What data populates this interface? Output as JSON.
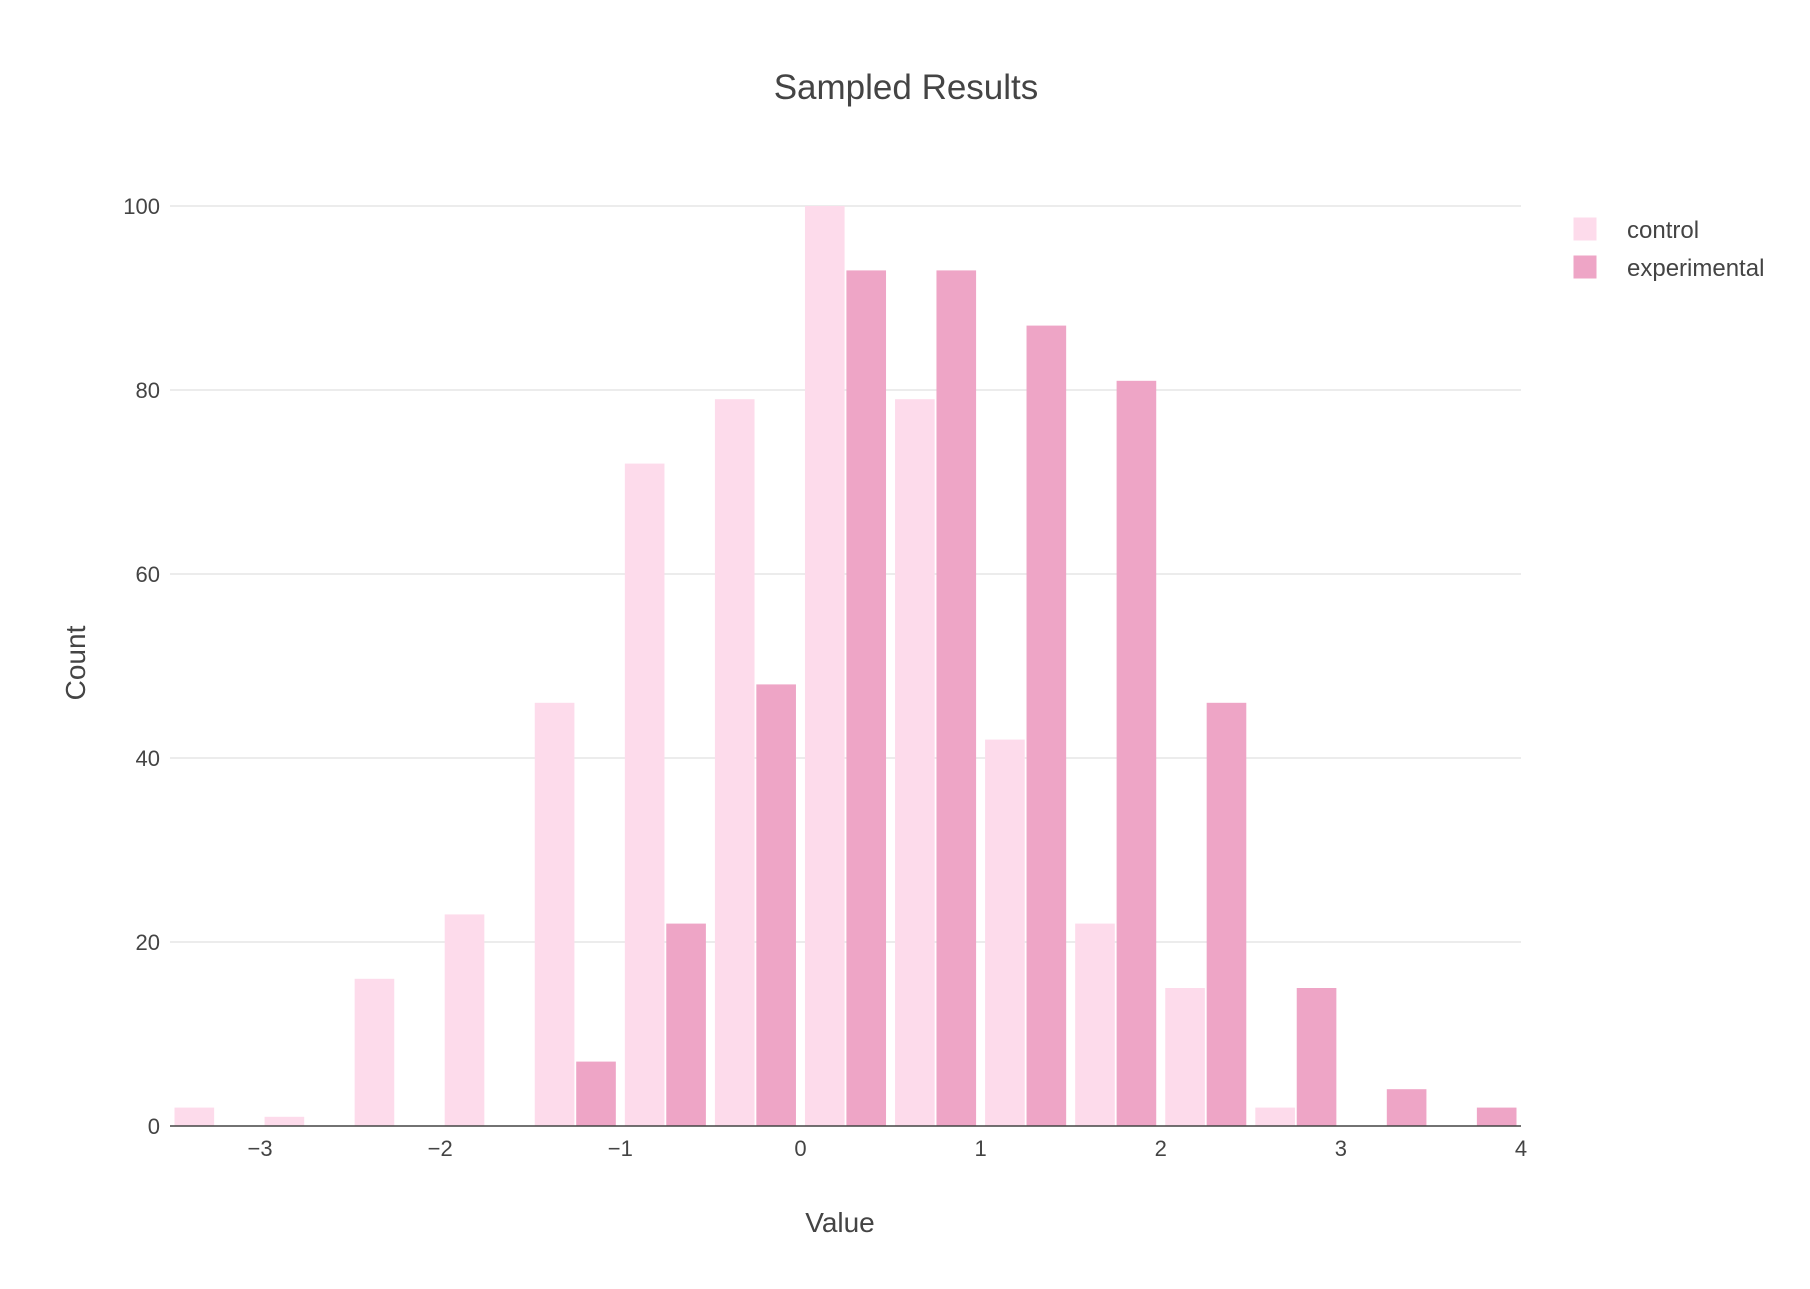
{
  "chart_data": {
    "type": "bar",
    "title": "Sampled Results",
    "xlabel": "Value",
    "ylabel": "Count",
    "xlim": [
      -3.5,
      4
    ],
    "ylim": [
      0,
      105
    ],
    "xticks": [
      -3,
      -2,
      -1,
      0,
      1,
      2,
      3,
      4
    ],
    "xtick_labels": [
      "−3",
      "−2",
      "−1",
      "0",
      "1",
      "2",
      "3",
      "4"
    ],
    "yticks": [
      0,
      20,
      40,
      60,
      80,
      100
    ],
    "ytick_labels": [
      "0",
      "20",
      "40",
      "60",
      "80",
      "100"
    ],
    "grid": true,
    "legend_position": "top-right",
    "bin_centers": [
      -3.25,
      -2.75,
      -2.25,
      -1.75,
      -1.25,
      -0.75,
      -0.25,
      0.25,
      0.75,
      1.25,
      1.75,
      2.25,
      2.75,
      3.25,
      3.75
    ],
    "series": [
      {
        "name": "control",
        "color": "#fddbeb",
        "values": [
          2,
          1,
          16,
          23,
          46,
          72,
          79,
          100,
          79,
          42,
          22,
          15,
          2,
          0,
          0
        ]
      },
      {
        "name": "experimental",
        "color": "#eea5c6",
        "values": [
          0,
          0,
          0,
          0,
          7,
          22,
          48,
          93,
          93,
          87,
          81,
          46,
          15,
          4,
          2
        ]
      }
    ]
  }
}
